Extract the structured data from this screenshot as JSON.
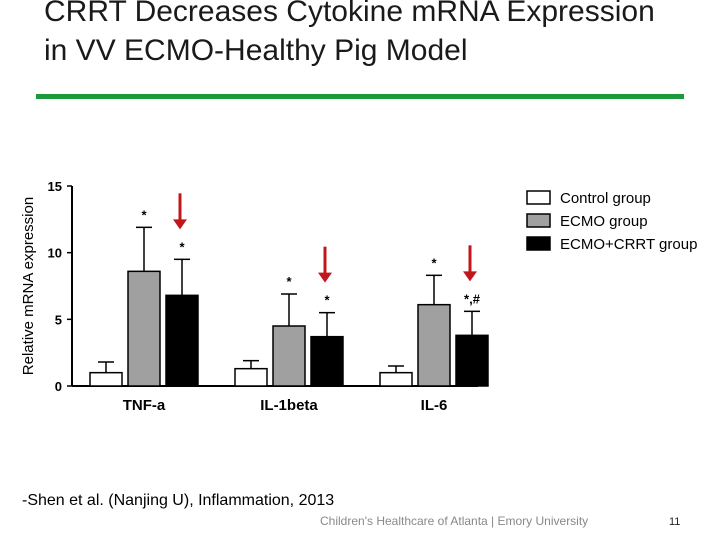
{
  "slide": {
    "title": "CRRT Decreases Cytokine mRNA Expression in VV ECMO-Healthy Pig Model",
    "citation": "-Shen et al. (Nanjing U), Inflammation, 2013",
    "footer": "Children's Healthcare of Atlanta | Emory University",
    "page_number": "11",
    "accent_color": "#1c9a3a",
    "arrow_color": "#c0171c"
  },
  "chart_data": {
    "type": "bar",
    "ylabel": "Relative mRNA expression",
    "ylim": [
      0,
      15
    ],
    "yticks": [
      0,
      5,
      10,
      15
    ],
    "categories": [
      "TNF-a",
      "IL-1beta",
      "IL-6"
    ],
    "series": [
      {
        "name": "Control group",
        "color": "#ffffff",
        "values": [
          1.0,
          1.3,
          1.0
        ],
        "errors": [
          0.8,
          0.6,
          0.5
        ]
      },
      {
        "name": "ECMO  group",
        "color": "#a0a0a0",
        "values": [
          8.6,
          4.5,
          6.1
        ],
        "errors": [
          3.3,
          2.4,
          2.2
        ]
      },
      {
        "name": "ECMO+CRRT group",
        "color": "#000000",
        "values": [
          6.8,
          3.7,
          3.8
        ],
        "errors": [
          2.7,
          1.8,
          1.8
        ]
      }
    ],
    "annotations": [
      {
        "category": 0,
        "series": 1,
        "text": "*"
      },
      {
        "category": 0,
        "series": 2,
        "text": "*"
      },
      {
        "category": 1,
        "series": 1,
        "text": "*"
      },
      {
        "category": 1,
        "series": 2,
        "text": "*"
      },
      {
        "category": 2,
        "series": 1,
        "text": "*"
      },
      {
        "category": 2,
        "series": 2,
        "text": "*,#"
      }
    ],
    "arrow_targets": [
      {
        "category": 0,
        "series": 2
      },
      {
        "category": 1,
        "series": 2
      },
      {
        "category": 2,
        "series": 2
      }
    ],
    "legend": "top-right",
    "grid": false
  }
}
